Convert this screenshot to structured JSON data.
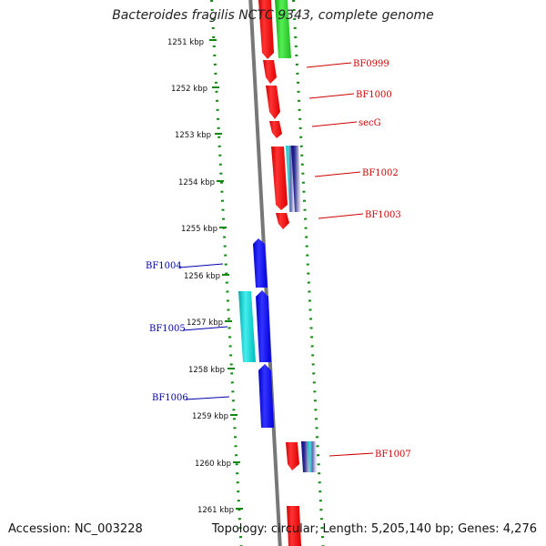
{
  "title": "Bacteroides fragilis NCTC 9343, complete genome",
  "footer": {
    "accession": "Accession: NC_003228",
    "topology": "Topology: circular; Length: 5,205,140 bp; Genes: 4,276"
  },
  "ticks": [
    "1251 kbp",
    "1252 kbp",
    "1253 kbp",
    "1254 kbp",
    "1255 kbp",
    "1256 kbp",
    "1257 kbp",
    "1258 kbp",
    "1259 kbp",
    "1260 kbp",
    "1261 kbp"
  ],
  "genes": {
    "forward": [
      "BF0999",
      "BF1000",
      "secG",
      "BF1002",
      "BF1003",
      "BF1007"
    ],
    "reverse": [
      "BF1004",
      "BF1005",
      "BF1006"
    ]
  },
  "colors": {
    "forward_label": "#cc0000",
    "reverse_label": "#0000aa",
    "red_gene": "#ff0000",
    "green_gene": "#22cc22",
    "blue_gene": "#0000ee",
    "cyan_gene": "#00cccc",
    "navy_gene": "#000080",
    "backbone": "#888888",
    "track_dots": "#118811"
  }
}
